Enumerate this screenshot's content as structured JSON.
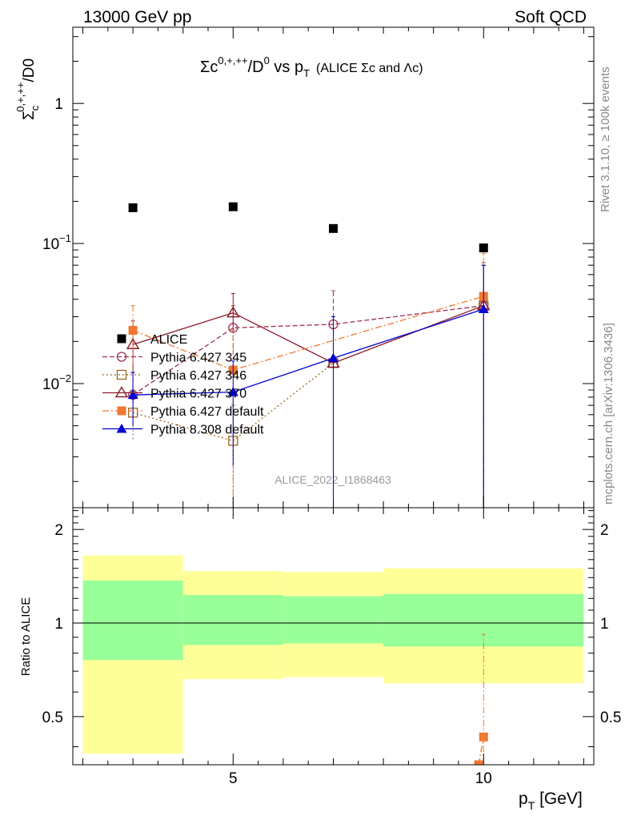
{
  "header": {
    "left": "13000 GeV pp",
    "right": "Soft QCD"
  },
  "side_labels": {
    "rivet": "Rivet 3.1.10, ≥ 100k events",
    "mcplots": "mcplots.cern.ch [arXiv:1306.3436]"
  },
  "watermark": "ALICE_2022_I1868463",
  "colors": {
    "ALICE": "#000000",
    "p345": "#a03050",
    "p346": "#9a6a20",
    "p370": "#8b1a2a",
    "p6def": "#f07830",
    "p8def": "#0000d0",
    "band_inner": "#99ff99",
    "band_outer": "#ffff99"
  },
  "chart_data": [
    {
      "type": "scatter",
      "title": "Σc⁰·⁺·⁺⁺/D⁰ vs pT (ALICE Σc and Λc)",
      "title_parts": {
        "main": "Σc",
        "sup": "0,+,++",
        "mid": "/D",
        "sup2": "0",
        "vs": " vs p",
        "sub": "T",
        "paren": "(ALICE Σc and Λc)"
      },
      "ylabel_parts": {
        "main": "Σ",
        "sub": "c",
        "sup": "0,+,++",
        "tail": "/D0"
      },
      "xlim": [
        1.8,
        12.2
      ],
      "ylim": [
        0.0013,
        3.5
      ],
      "yscale": "log",
      "yticks": [
        {
          "value": 1,
          "label": "1"
        },
        {
          "value": 0.1,
          "base": "10",
          "exp": "−1"
        },
        {
          "value": 0.01,
          "base": "10",
          "exp": "−2"
        }
      ],
      "legend_position": "lower-left",
      "series": [
        {
          "name": "ALICE",
          "key": "ALICE",
          "marker": "square-filled",
          "line": "none",
          "points": [
            {
              "x": 3,
              "y": 0.18
            },
            {
              "x": 5,
              "y": 0.183
            },
            {
              "x": 7,
              "y": 0.128
            },
            {
              "x": 10,
              "y": 0.093
            }
          ]
        },
        {
          "name": "Pythia 6.427 345",
          "key": "p345",
          "marker": "circle-open",
          "line": "dashed",
          "points": [
            {
              "x": 3,
              "y": 0.0083,
              "lo": 0.005,
              "hi": 0.012
            },
            {
              "x": 5,
              "y": 0.025,
              "lo": 0.016,
              "hi": 0.036
            },
            {
              "x": 7,
              "y": 0.0265,
              "lo": 0.008,
              "hi": 0.046
            },
            {
              "x": 10,
              "y": 0.036,
              "lo": 0.0013,
              "hi": 0.073
            }
          ]
        },
        {
          "name": "Pythia 6.427 346",
          "key": "p346",
          "marker": "square-open",
          "line": "dotted",
          "points": [
            {
              "x": 3,
              "y": 0.0062,
              "lo": 0.004,
              "hi": 0.009
            },
            {
              "x": 5,
              "y": 0.0039,
              "lo": 0.0013,
              "hi": 0.007
            },
            {
              "x": 7,
              "y": 0.014,
              "lo": 0.0013,
              "hi": 0.03
            },
            {
              "x": 10,
              "y": 0.036,
              "lo": 0.0013,
              "hi": 0.07
            }
          ]
        },
        {
          "name": "Pythia 6.427 370",
          "key": "p370",
          "marker": "triangle-open",
          "line": "solid",
          "points": [
            {
              "x": 3,
              "y": 0.019,
              "lo": 0.012,
              "hi": 0.028
            },
            {
              "x": 5,
              "y": 0.032,
              "lo": 0.023,
              "hi": 0.044
            },
            {
              "x": 7,
              "y": 0.014,
              "lo": 0.0013,
              "hi": 0.03
            },
            {
              "x": 10,
              "y": 0.036,
              "lo": 0.0013,
              "hi": 0.07
            }
          ]
        },
        {
          "name": "Pythia 6.427 default",
          "key": "p6def",
          "marker": "square-filled",
          "line": "dashdot",
          "points": [
            {
              "x": 3,
              "y": 0.024,
              "lo": 0.014,
              "hi": 0.036
            },
            {
              "x": 5,
              "y": 0.0125,
              "lo": 0.0013,
              "hi": 0.024
            },
            {
              "x": 10,
              "y": 0.042,
              "lo": 0.0013,
              "hi": 0.085
            }
          ]
        },
        {
          "name": "Pythia 8.308 default",
          "key": "p8def",
          "marker": "triangle-filled",
          "line": "solid",
          "points": [
            {
              "x": 3,
              "y": 0.0083,
              "lo": 0.005,
              "hi": 0.012
            },
            {
              "x": 5,
              "y": 0.0087,
              "lo": 0.0026,
              "hi": 0.0145
            },
            {
              "x": 7,
              "y": 0.0152,
              "lo": 0.0013,
              "hi": 0.03
            },
            {
              "x": 10,
              "y": 0.034,
              "lo": 0.0013,
              "hi": 0.07
            }
          ]
        }
      ]
    },
    {
      "type": "scatter",
      "ylabel": "Ratio to ALICE",
      "xlabel_parts": {
        "main": "p",
        "sub": "T",
        "tail": " [GeV]"
      },
      "xlim": [
        1.8,
        12.2
      ],
      "ylim": [
        0.35,
        2.35
      ],
      "yscale": "log",
      "yticks": [
        {
          "value": 0.5,
          "label": "0.5"
        },
        {
          "value": 1,
          "label": "1"
        },
        {
          "value": 2,
          "label": "2"
        }
      ],
      "xticks": [
        {
          "value": 5,
          "label": "5"
        },
        {
          "value": 10,
          "label": "10"
        }
      ],
      "bands": [
        {
          "x0": 2,
          "x1": 4,
          "inner": [
            0.76,
            1.37
          ],
          "outer": [
            0.38,
            1.65
          ]
        },
        {
          "x0": 4,
          "x1": 6,
          "inner": [
            0.85,
            1.23
          ],
          "outer": [
            0.66,
            1.47
          ]
        },
        {
          "x0": 6,
          "x1": 8,
          "inner": [
            0.86,
            1.22
          ],
          "outer": [
            0.67,
            1.46
          ]
        },
        {
          "x0": 8,
          "x1": 12,
          "inner": [
            0.84,
            1.24
          ],
          "outer": [
            0.64,
            1.5
          ]
        }
      ],
      "series": [
        {
          "name": "Pythia 6.427 default",
          "key": "p6def",
          "marker": "square-filled",
          "line": "dashdot",
          "points": [
            {
              "x": 9.9,
              "y": 0.35
            },
            {
              "x": 10,
              "y": 0.43,
              "lo": 0.35,
              "hi": 0.92
            }
          ]
        }
      ]
    }
  ]
}
